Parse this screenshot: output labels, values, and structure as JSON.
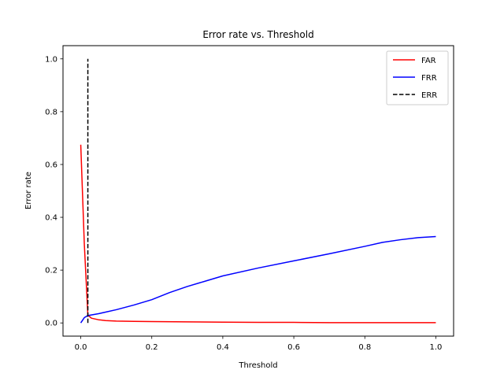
{
  "chart_data": {
    "type": "line",
    "title": "Error rate vs. Threshold",
    "xlabel": "Threshold",
    "ylabel": "Error rate",
    "xlim": [
      -0.05,
      1.05
    ],
    "ylim": [
      -0.05,
      1.05
    ],
    "xticks": [
      0.0,
      0.2,
      0.4,
      0.6,
      0.8,
      1.0
    ],
    "xtick_labels": [
      "0.0",
      "0.2",
      "0.4",
      "0.6",
      "0.8",
      "1.0"
    ],
    "yticks": [
      0.0,
      0.2,
      0.4,
      0.6,
      0.8,
      1.0
    ],
    "ytick_labels": [
      "0.0",
      "0.2",
      "0.4",
      "0.6",
      "0.8",
      "1.0"
    ],
    "grid": false,
    "legend_position": "top-right",
    "series": [
      {
        "name": "FAR",
        "color": "#ff0000",
        "dash": "solid",
        "x": [
          0.0,
          0.01,
          0.02,
          0.03,
          0.05,
          0.07,
          0.1,
          0.15,
          0.2,
          0.3,
          0.4,
          0.5,
          0.6,
          0.7,
          0.8,
          0.9,
          1.0
        ],
        "y": [
          0.675,
          0.3,
          0.03,
          0.018,
          0.012,
          0.009,
          0.007,
          0.006,
          0.005,
          0.004,
          0.003,
          0.002,
          0.002,
          0.001,
          0.001,
          0.001,
          0.001
        ]
      },
      {
        "name": "FRR",
        "color": "#0000ff",
        "dash": "solid",
        "x": [
          0.0,
          0.01,
          0.02,
          0.05,
          0.1,
          0.15,
          0.2,
          0.25,
          0.3,
          0.35,
          0.4,
          0.5,
          0.6,
          0.7,
          0.8,
          0.85,
          0.9,
          0.95,
          1.0
        ],
        "y": [
          0.0,
          0.02,
          0.028,
          0.035,
          0.05,
          0.068,
          0.088,
          0.115,
          0.138,
          0.158,
          0.178,
          0.208,
          0.235,
          0.262,
          0.29,
          0.305,
          0.315,
          0.323,
          0.327
        ]
      },
      {
        "name": "ERR",
        "color": "#000000",
        "dash": "dashed",
        "x": [
          0.02,
          0.02
        ],
        "y": [
          0.0,
          1.0
        ]
      }
    ]
  }
}
